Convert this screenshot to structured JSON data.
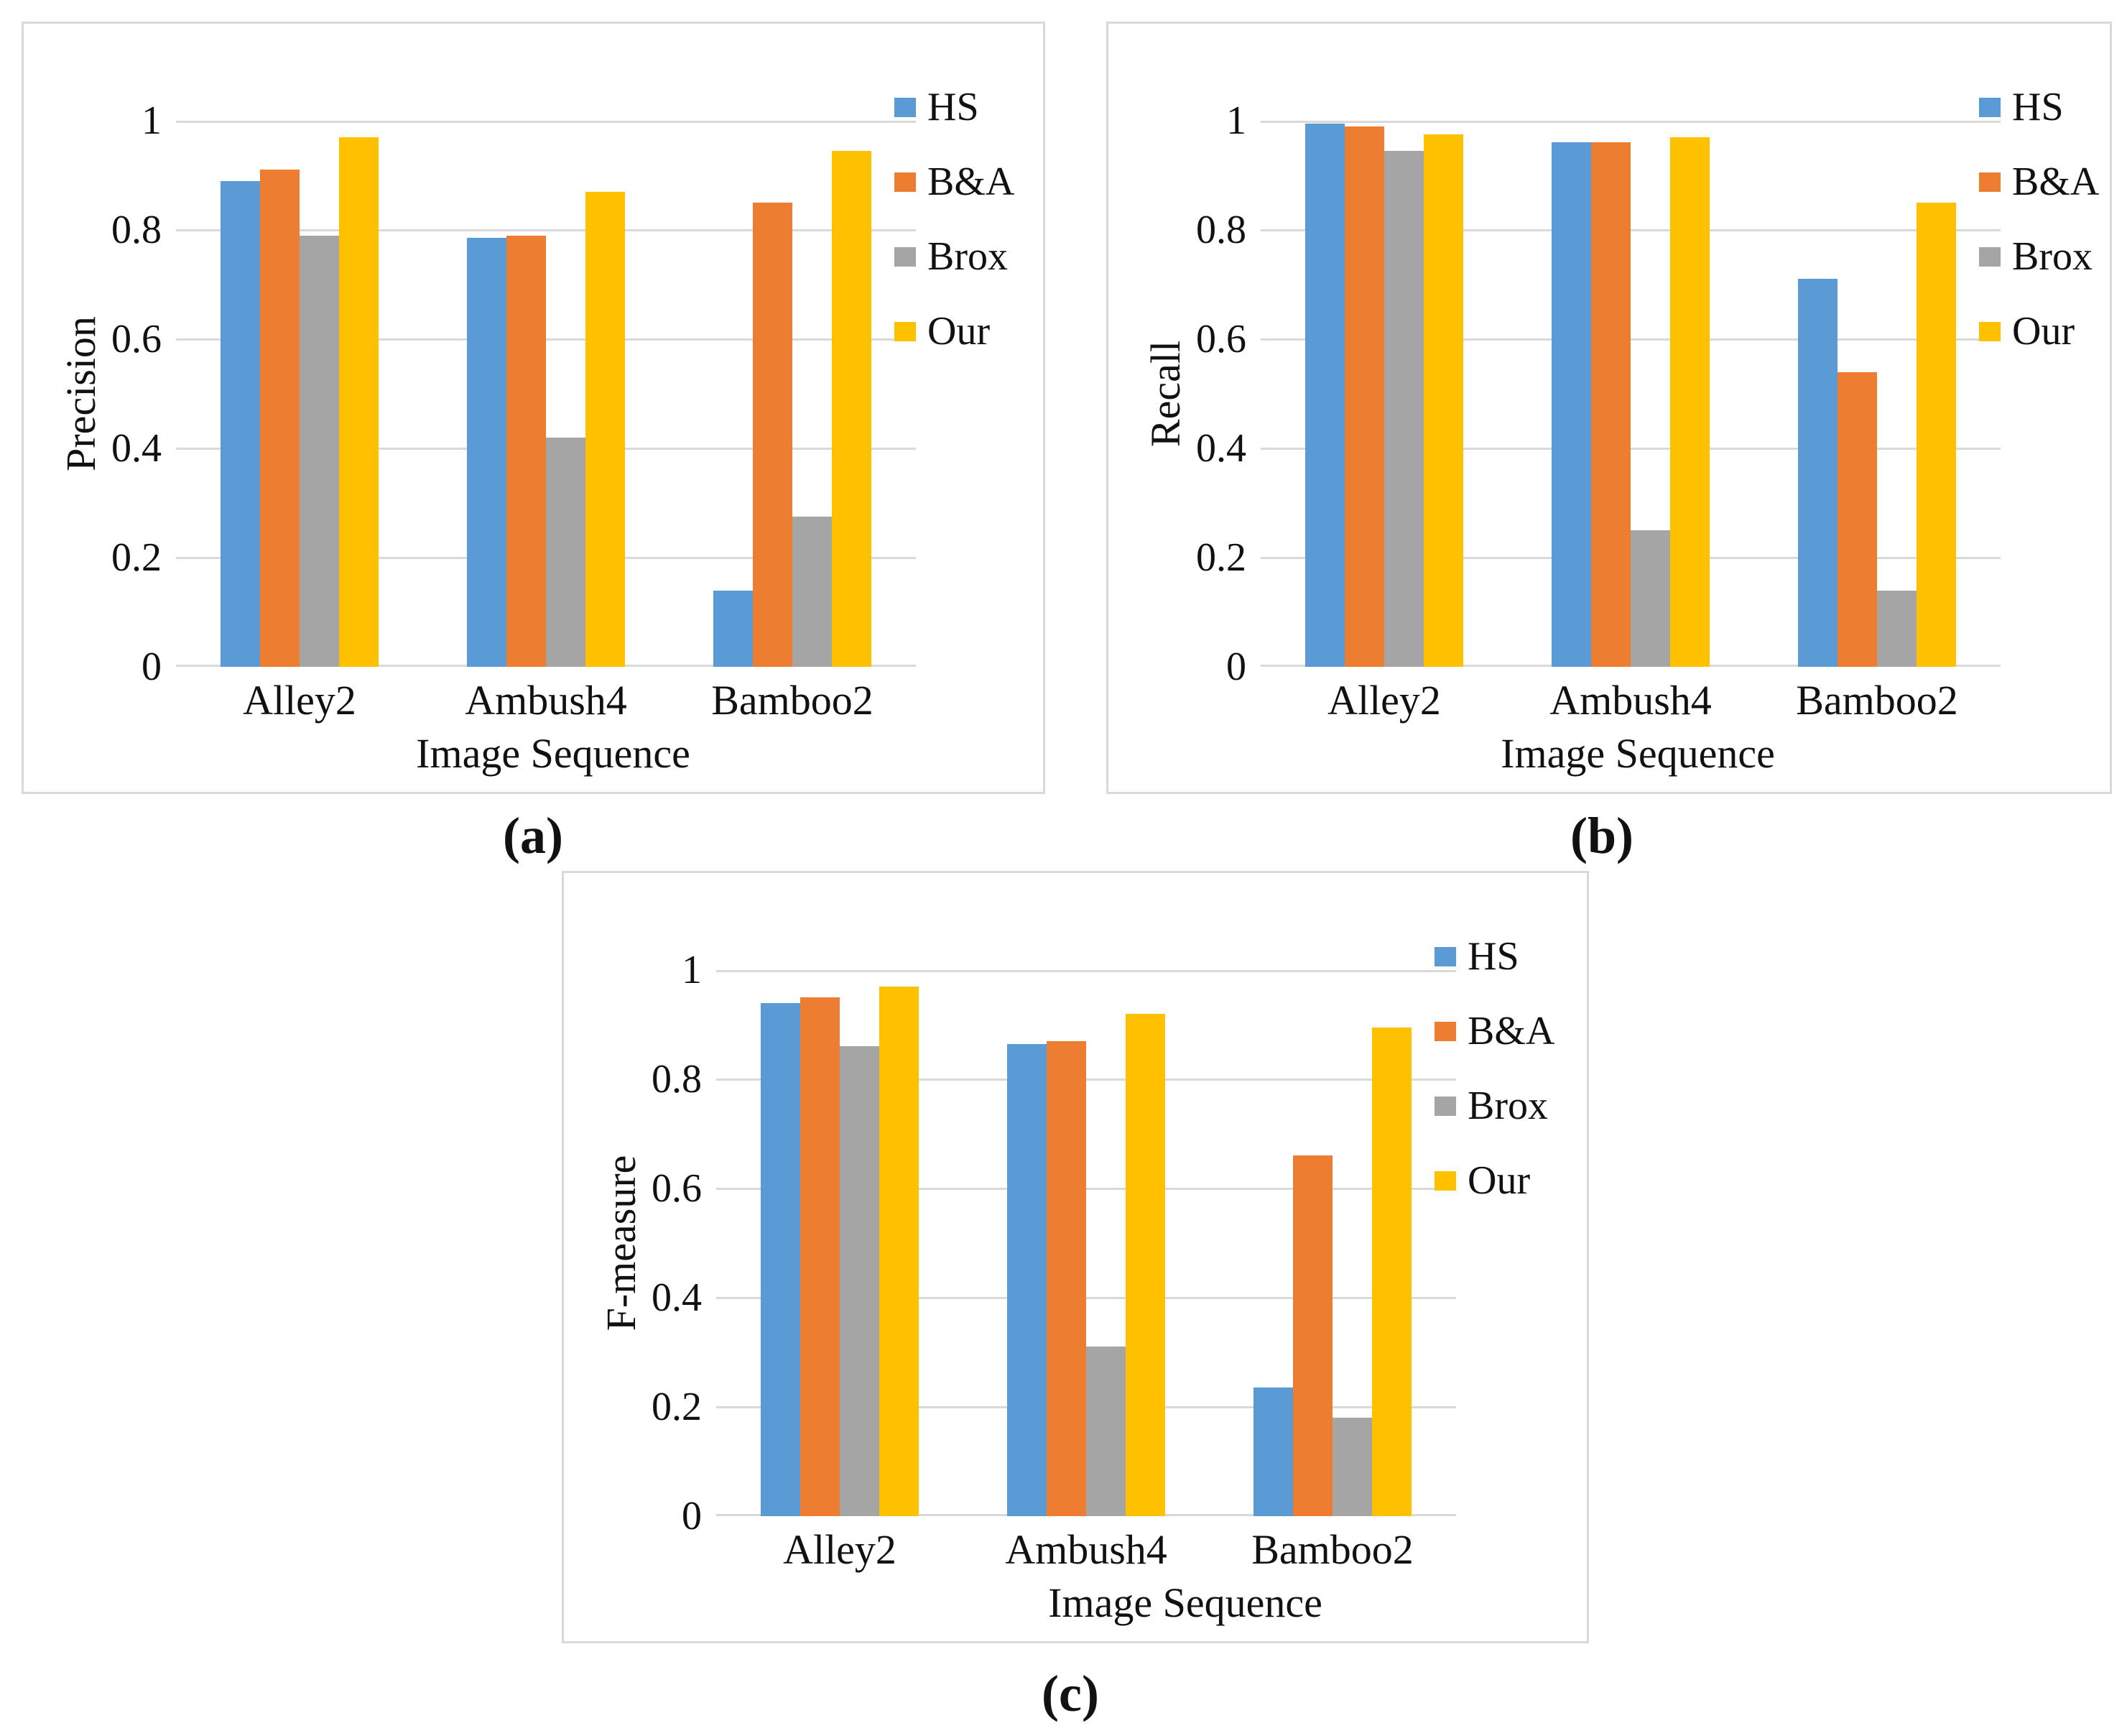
{
  "figure": {
    "background": "#ffffff",
    "text_color": "#111111",
    "gridline_color": "#d9d9d9",
    "panel_border_color": "#d9d9d9"
  },
  "captions": {
    "a": "(a)",
    "b": "(b)",
    "c": "(c)"
  },
  "chart_data": [
    {
      "id": "a",
      "type": "bar",
      "panel_caption": "(a)",
      "title": "",
      "xlabel": "Image Sequence",
      "ylabel": "Precision",
      "categories": [
        "Alley2",
        "Ambush4",
        "Bamboo2"
      ],
      "ylim": [
        0,
        1
      ],
      "ytick_labels": [
        "0",
        "0.2",
        "0.4",
        "0.6",
        "0.8",
        "1"
      ],
      "grid": true,
      "legend_position": "right",
      "legend": [
        "HS",
        "B&A",
        "Brox",
        "Our"
      ],
      "series": [
        {
          "name": "HS",
          "color": "#5B9BD5",
          "values": [
            0.89,
            0.785,
            0.14
          ]
        },
        {
          "name": "B&A",
          "color": "#ED7D31",
          "values": [
            0.91,
            0.79,
            0.85
          ]
        },
        {
          "name": "Brox",
          "color": "#A5A5A5",
          "values": [
            0.79,
            0.42,
            0.275
          ]
        },
        {
          "name": "Our",
          "color": "#FFC000",
          "values": [
            0.97,
            0.87,
            0.945
          ]
        }
      ]
    },
    {
      "id": "b",
      "type": "bar",
      "panel_caption": "(b)",
      "title": "",
      "xlabel": "Image Sequence",
      "ylabel": "Recall",
      "categories": [
        "Alley2",
        "Ambush4",
        "Bamboo2"
      ],
      "ylim": [
        0,
        1
      ],
      "ytick_labels": [
        "0",
        "0.2",
        "0.4",
        "0.6",
        "0.8",
        "1"
      ],
      "grid": true,
      "legend_position": "right",
      "legend": [
        "HS",
        "B&A",
        "Brox",
        "Our"
      ],
      "series": [
        {
          "name": "HS",
          "color": "#5B9BD5",
          "values": [
            0.995,
            0.96,
            0.71
          ]
        },
        {
          "name": "B&A",
          "color": "#ED7D31",
          "values": [
            0.99,
            0.96,
            0.54
          ]
        },
        {
          "name": "Brox",
          "color": "#A5A5A5",
          "values": [
            0.945,
            0.25,
            0.14
          ]
        },
        {
          "name": "Our",
          "color": "#FFC000",
          "values": [
            0.975,
            0.97,
            0.85
          ]
        }
      ]
    },
    {
      "id": "c",
      "type": "bar",
      "panel_caption": "(c)",
      "title": "",
      "xlabel": "Image Sequence",
      "ylabel": "F-measure",
      "categories": [
        "Alley2",
        "Ambush4",
        "Bamboo2"
      ],
      "ylim": [
        0,
        1
      ],
      "ytick_labels": [
        "0",
        "0.2",
        "0.4",
        "0.6",
        "0.8",
        "1"
      ],
      "grid": true,
      "legend_position": "right",
      "legend": [
        "HS",
        "B&A",
        "Brox",
        "Our"
      ],
      "series": [
        {
          "name": "HS",
          "color": "#5B9BD5",
          "values": [
            0.94,
            0.865,
            0.235
          ]
        },
        {
          "name": "B&A",
          "color": "#ED7D31",
          "values": [
            0.95,
            0.87,
            0.66
          ]
        },
        {
          "name": "Brox",
          "color": "#A5A5A5",
          "values": [
            0.86,
            0.31,
            0.18
          ]
        },
        {
          "name": "Our",
          "color": "#FFC000",
          "values": [
            0.97,
            0.92,
            0.895
          ]
        }
      ]
    }
  ]
}
